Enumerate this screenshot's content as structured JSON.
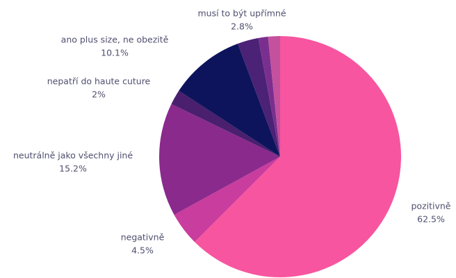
{
  "chart_data": {
    "type": "pie",
    "categories": [
      "pozitivně",
      "negativně",
      "neutrálně jako všechny jiné",
      "nepatří do haute cuture",
      "ano plus size, ne obezitě",
      "musí to být upřímné",
      null,
      null
    ],
    "values": [
      62.5,
      4.5,
      15.2,
      2,
      10.1,
      2.8,
      1.3,
      1.6
    ],
    "value_labels": [
      "62.5%",
      "4.5%",
      "15.2%",
      "2%",
      "10.1%",
      "2.8%",
      null,
      null
    ],
    "colors": [
      "#f7559f",
      "#c93d9e",
      "#8a2a8c",
      "#4a1f6e",
      "#0d145c",
      "#4b2275",
      "#7a2f8f",
      "#c4519e"
    ]
  }
}
